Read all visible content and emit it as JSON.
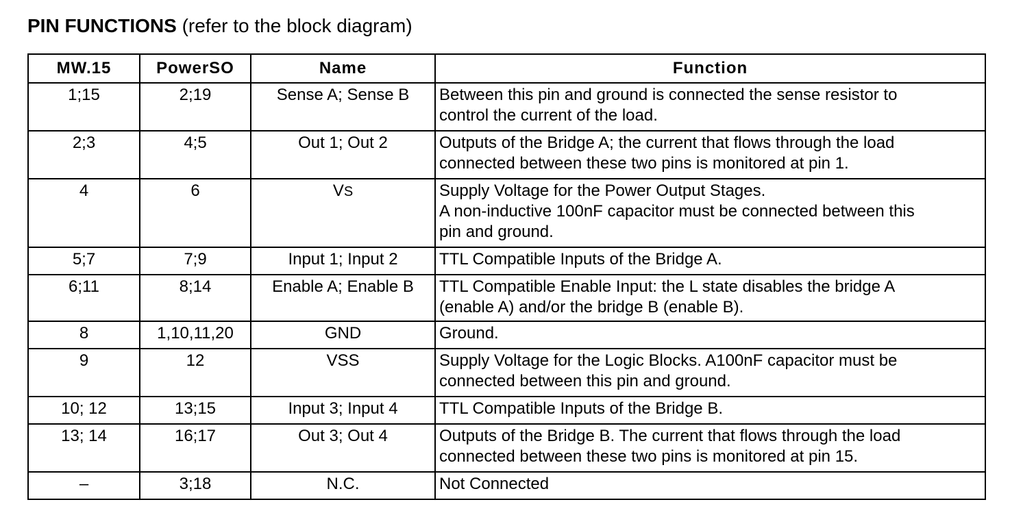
{
  "heading": {
    "bold": "PIN FUNCTIONS",
    "note": "(refer to the block diagram)"
  },
  "table": {
    "headers": {
      "mw15": "MW.15",
      "powerso": "PowerSO",
      "name": "Name",
      "function": "Function"
    },
    "rows": [
      {
        "mw15": "1;15",
        "powerso": "2;19",
        "name": "Sense A; Sense B",
        "function": [
          "Between this pin and ground is connected the sense resistor to",
          "control the current of the load."
        ]
      },
      {
        "mw15": "2;3",
        "powerso": "4;5",
        "name": "Out 1; Out 2",
        "function": [
          "Outputs of the Bridge A; the current that flows through the load",
          "connected between these two pins is monitored at pin 1."
        ]
      },
      {
        "mw15": "4",
        "powerso": "6",
        "name_main": "V",
        "name_sub": "S",
        "function": [
          "Supply Voltage for the Power Output Stages.",
          "A non-inductive 100nF capacitor must be connected between this",
          "pin and ground."
        ]
      },
      {
        "mw15": "5;7",
        "powerso": "7;9",
        "name": "Input 1; Input 2",
        "function": [
          "TTL Compatible Inputs of the Bridge A."
        ]
      },
      {
        "mw15": "6;11",
        "powerso": "8;14",
        "name": "Enable A; Enable B",
        "function": [
          "TTL Compatible Enable Input: the L state disables the bridge A",
          "(enable A) and/or the bridge B (enable B)."
        ]
      },
      {
        "mw15": "8",
        "powerso": "1,10,11,20",
        "name": "GND",
        "function": [
          "Ground."
        ]
      },
      {
        "mw15": "9",
        "powerso": "12",
        "name": "VSS",
        "function": [
          "Supply Voltage for the Logic Blocks. A100nF capacitor must be",
          "connected between this pin and ground."
        ]
      },
      {
        "mw15": "10; 12",
        "powerso": "13;15",
        "name": "Input 3; Input 4",
        "function": [
          "TTL Compatible Inputs of the Bridge B."
        ]
      },
      {
        "mw15": "13; 14",
        "powerso": "16;17",
        "name": "Out 3; Out 4",
        "function": [
          "Outputs of the Bridge B. The current that flows through the load",
          "connected between these two pins is monitored at pin 15."
        ]
      },
      {
        "mw15": "–",
        "powerso": "3;18",
        "name": "N.C.",
        "function": [
          "Not Connected"
        ]
      }
    ]
  }
}
